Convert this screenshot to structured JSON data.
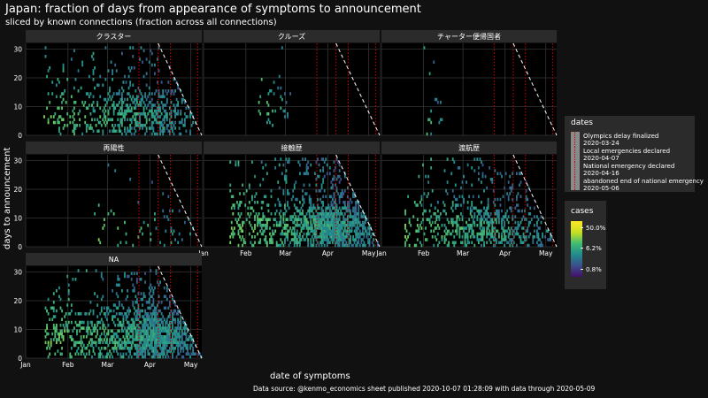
{
  "title": "Japan: fraction of days from appearance of symptoms to announcement",
  "subtitle": "sliced by known connections (fraction across all connections)",
  "xlabel": "date of symptoms",
  "ylabel": "days to announcement",
  "caption": "Data source: @kenmo_economics sheet published 2020-10-07 01:28:09 with data through 2020-05-09",
  "legend_dates": {
    "title": "dates",
    "entries": [
      {
        "label": "Olympics delay finalized",
        "date": "2020-03-24"
      },
      {
        "label": "Local emergencies declared",
        "date": "2020-04-07"
      },
      {
        "label": "National emergency declared",
        "date": "2020-04-16"
      },
      {
        "label": "abandoned end of national emergency",
        "date": "2020-05-06"
      }
    ]
  },
  "legend_cases": {
    "title": "cases",
    "labels": [
      "50.0%",
      "6.2%",
      "0.8%"
    ]
  },
  "colors": {
    "background": "#111111",
    "panel": "#000000",
    "strip": "#2b2b2b",
    "grid": "#353535",
    "vline": "#c40000",
    "diagonal": "#ffffff"
  },
  "chart_data": {
    "type": "heatmap",
    "x_axis": {
      "ticks": [
        "Jan",
        "Feb",
        "Mar",
        "Apr",
        "May"
      ],
      "range": [
        "2020-01-01",
        "2020-05-09"
      ]
    },
    "y_axis": {
      "ticks": [
        0,
        10,
        20,
        30
      ],
      "range": [
        0,
        32
      ]
    },
    "color_scale": {
      "type": "log",
      "labels": [
        "0.8%",
        "6.2%",
        "50.0%"
      ]
    },
    "vlines": [
      "2020-03-24",
      "2020-04-07",
      "2020-04-16",
      "2020-05-06"
    ],
    "diagonal": "days to announcement limited by data through 2020-05-09",
    "facets": [
      {
        "name": "クラスター",
        "density": "medium",
        "x_range": [
          "2020-01-14",
          "2020-05-05"
        ],
        "y_peak": 6,
        "y_spread": 5,
        "x_center": "2020-03-30"
      },
      {
        "name": "クルーズ",
        "density": "sparse",
        "x_range": [
          "2020-02-10",
          "2020-03-05"
        ],
        "y_peak": 8,
        "y_spread": 4,
        "x_center": "2020-02-20"
      },
      {
        "name": "チャーター便帰国者",
        "density": "sparse",
        "x_range": [
          "2020-02-01",
          "2020-02-14"
        ],
        "y_peak": 4,
        "y_spread": 3,
        "x_center": "2020-02-05"
      },
      {
        "name": "再陽性",
        "density": "sparse",
        "x_range": [
          "2020-02-20",
          "2020-05-03"
        ],
        "y_peak": 4,
        "y_spread": 5,
        "x_center": "2020-04-20"
      },
      {
        "name": "接触歴",
        "density": "dense",
        "x_range": [
          "2020-01-20",
          "2020-05-08"
        ],
        "y_peak": 6,
        "y_spread": 6,
        "x_center": "2020-04-05"
      },
      {
        "name": "渡航歴",
        "density": "medium",
        "x_range": [
          "2020-01-18",
          "2020-05-05"
        ],
        "y_peak": 5,
        "y_spread": 5,
        "x_center": "2020-03-20"
      },
      {
        "name": "NA",
        "density": "dense",
        "x_range": [
          "2020-01-15",
          "2020-05-08"
        ],
        "y_peak": 7,
        "y_spread": 6,
        "x_center": "2020-04-05"
      }
    ]
  }
}
